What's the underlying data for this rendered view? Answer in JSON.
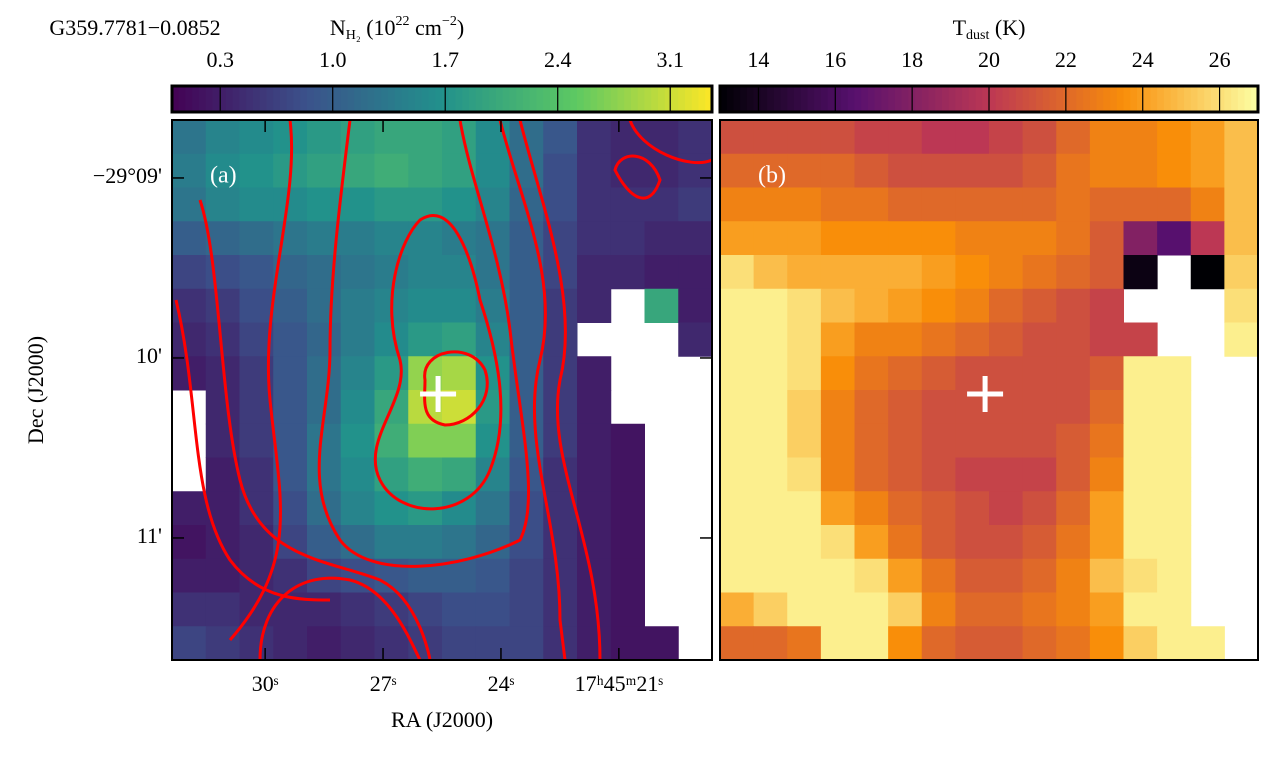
{
  "chart_data": [
    {
      "type": "heatmap",
      "title": "G359.7781−0.0852",
      "panel_label": "(a)",
      "colormap": "viridis",
      "cbar_label": [
        "N",
        "H₂",
        " (10",
        "22",
        " cm",
        "−2",
        ")"
      ],
      "clim": [
        0,
        3.36
      ],
      "cticks": [
        0.3,
        {
          "value": 1,
          "label": "1.0"
        },
        1.7,
        2.4,
        3.1
      ],
      "xlabel": "RA (J2000)",
      "ylabel": "Dec (J2000)",
      "xlim": [
        32.37,
        18.63
      ],
      "xticks": [
        {
          "value": 30,
          "label": "30ˢ"
        },
        {
          "value": 27,
          "label": "27ˢ"
        },
        {
          "value": 24,
          "label": "24ˢ"
        },
        {
          "value": 21,
          "label": "17ʰ45ᵐ21ˢ"
        }
      ],
      "ylim": [
        11.678,
        8.678
      ],
      "yticks": [
        {
          "value": 9,
          "label": "−29°09'"
        },
        {
          "value": 10,
          "label": "10'"
        },
        {
          "value": 11,
          "label": "11'"
        }
      ],
      "cross": [
        25.6,
        10.2
      ],
      "z": [
        [
          1.3,
          1.5,
          1.6,
          1.7,
          1.8,
          1.9,
          2.0,
          2.0,
          1.9,
          1.6,
          1.2,
          0.9,
          0.5,
          0.4,
          0.4,
          0.5
        ],
        [
          1.4,
          1.6,
          1.7,
          1.8,
          1.9,
          2.0,
          2.1,
          2.0,
          1.9,
          1.6,
          1.2,
          0.8,
          0.5,
          0.4,
          0.4,
          0.5
        ],
        [
          1.3,
          1.5,
          1.6,
          1.6,
          1.7,
          1.7,
          1.8,
          1.8,
          1.7,
          1.5,
          1.1,
          0.8,
          0.5,
          0.5,
          0.5,
          0.6
        ],
        [
          1.0,
          1.1,
          1.2,
          1.3,
          1.4,
          1.4,
          1.5,
          1.5,
          1.4,
          1.3,
          1.0,
          0.7,
          0.5,
          0.5,
          0.4,
          0.4
        ],
        [
          0.7,
          0.8,
          0.9,
          1.1,
          1.2,
          1.3,
          1.4,
          1.5,
          1.5,
          1.3,
          1.0,
          0.7,
          0.4,
          0.4,
          0.3,
          0.3
        ],
        [
          0.5,
          0.6,
          0.8,
          1.0,
          1.2,
          1.4,
          1.5,
          1.6,
          1.6,
          1.4,
          1.0,
          0.6,
          0.4,
          null,
          2.0,
          0.3
        ],
        [
          0.4,
          0.5,
          0.7,
          0.9,
          1.1,
          1.4,
          1.6,
          1.8,
          1.9,
          1.5,
          1.0,
          0.6,
          null,
          null,
          null,
          0.4
        ],
        [
          0.3,
          0.4,
          0.6,
          0.9,
          1.2,
          1.5,
          1.8,
          2.8,
          2.9,
          1.7,
          1.0,
          0.6,
          0.3,
          null,
          null,
          null
        ],
        [
          null,
          0.4,
          0.6,
          0.9,
          1.2,
          1.6,
          2.0,
          3.0,
          3.1,
          1.8,
          1.0,
          0.6,
          0.3,
          null,
          null,
          null
        ],
        [
          null,
          0.4,
          0.6,
          0.9,
          1.3,
          1.7,
          2.1,
          2.7,
          2.7,
          1.7,
          1.0,
          0.6,
          0.3,
          0.2,
          null,
          null
        ],
        [
          null,
          0.3,
          0.5,
          0.9,
          1.3,
          1.6,
          1.9,
          2.1,
          2.0,
          1.5,
          0.9,
          0.5,
          0.3,
          0.2,
          null,
          null
        ],
        [
          0.3,
          0.3,
          0.5,
          0.8,
          1.2,
          1.5,
          1.7,
          1.8,
          1.6,
          1.3,
          0.8,
          0.5,
          0.3,
          0.2,
          null,
          null
        ],
        [
          0.2,
          0.3,
          0.4,
          0.7,
          1.0,
          1.2,
          1.4,
          1.4,
          1.3,
          1.1,
          0.8,
          0.5,
          0.3,
          0.2,
          null,
          null
        ],
        [
          0.3,
          0.3,
          0.4,
          0.5,
          0.7,
          0.8,
          0.9,
          1.0,
          1.0,
          0.9,
          0.7,
          0.5,
          0.3,
          0.2,
          null,
          null
        ],
        [
          0.5,
          0.5,
          0.4,
          0.4,
          0.4,
          0.5,
          0.6,
          0.7,
          0.8,
          0.8,
          0.7,
          0.5,
          0.3,
          0.2,
          null,
          null
        ],
        [
          0.7,
          0.6,
          0.5,
          0.4,
          0.3,
          0.4,
          0.5,
          0.6,
          0.7,
          0.7,
          0.7,
          0.5,
          0.3,
          0.2,
          0.2,
          null
        ]
      ]
    },
    {
      "type": "heatmap",
      "panel_label": "(b)",
      "colormap": "inferno",
      "cbar_label": [
        "T",
        "dust",
        " (K)"
      ],
      "clim": [
        13,
        27
      ],
      "cticks": [
        14,
        16,
        18,
        20,
        22,
        24,
        26
      ],
      "xlim": [
        32.37,
        18.63
      ],
      "ylim": [
        11.678,
        8.678
      ],
      "cross": [
        25.6,
        10.2
      ],
      "z": [
        [
          21,
          21,
          21,
          21,
          20.5,
          20.5,
          20,
          20,
          20.5,
          21,
          22,
          23,
          23,
          23.5,
          24,
          25
        ],
        [
          22,
          22,
          22,
          22,
          21.5,
          21,
          21,
          21,
          21,
          21.5,
          22.5,
          23,
          23,
          23.5,
          24,
          25
        ],
        [
          23,
          23,
          23,
          22.5,
          22.5,
          22,
          22,
          22,
          22,
          22,
          22.5,
          22,
          22,
          22,
          23,
          25
        ],
        [
          24,
          24,
          24,
          23.5,
          23.5,
          23.5,
          23.5,
          23,
          23,
          23,
          22.5,
          21.5,
          18,
          16.5,
          20,
          25
        ],
        [
          26,
          25,
          24.5,
          24.5,
          24.5,
          24.5,
          24,
          23.5,
          23,
          22.5,
          22,
          21.5,
          13.5,
          null,
          13,
          25.5
        ],
        [
          26.5,
          26.5,
          26,
          25,
          24.5,
          24,
          23.5,
          23,
          22,
          21.5,
          21,
          20.5,
          null,
          null,
          null,
          26
        ],
        [
          26.5,
          26.5,
          26,
          24,
          23,
          23,
          22.5,
          22,
          21.5,
          21,
          21,
          20.5,
          20.5,
          null,
          null,
          26.5
        ],
        [
          26.5,
          26.5,
          26,
          23.5,
          22.5,
          22,
          21.5,
          21,
          21,
          21,
          21,
          21.5,
          26.5,
          26.5,
          null,
          null
        ],
        [
          26.5,
          26.5,
          25.5,
          23,
          22,
          21.5,
          21,
          21,
          21,
          21,
          21,
          22,
          26.5,
          26.5,
          null,
          null
        ],
        [
          26.5,
          26.5,
          25.5,
          23,
          22,
          21.5,
          21,
          21,
          21,
          21,
          21.5,
          22.5,
          26.5,
          26.5,
          null,
          null
        ],
        [
          26.5,
          26.5,
          26,
          23,
          22,
          21.5,
          21,
          20.5,
          20.5,
          20.5,
          21.5,
          23,
          26.5,
          26.5,
          null,
          null
        ],
        [
          26.5,
          26.5,
          26.5,
          24,
          23,
          22,
          21.5,
          21,
          20.5,
          21,
          22,
          24,
          26.5,
          26.5,
          null,
          null
        ],
        [
          26.5,
          26.5,
          26.5,
          26,
          24,
          22.5,
          21.5,
          21,
          21,
          21.5,
          22.5,
          24,
          26.5,
          26.5,
          null,
          null
        ],
        [
          26.5,
          26.5,
          26.5,
          26.5,
          26,
          24,
          22.5,
          21.5,
          21.5,
          22,
          23,
          25,
          26,
          26.5,
          null,
          null
        ],
        [
          24.5,
          25.5,
          26.5,
          26.5,
          26.5,
          25.5,
          23,
          22,
          22,
          22.5,
          23,
          24,
          26.5,
          26.5,
          null,
          null
        ],
        [
          22,
          22,
          22.5,
          26.5,
          26.5,
          23.5,
          22,
          21.5,
          21.5,
          22,
          22.5,
          23.5,
          25.5,
          26.5,
          26.5,
          null
        ]
      ]
    }
  ]
}
